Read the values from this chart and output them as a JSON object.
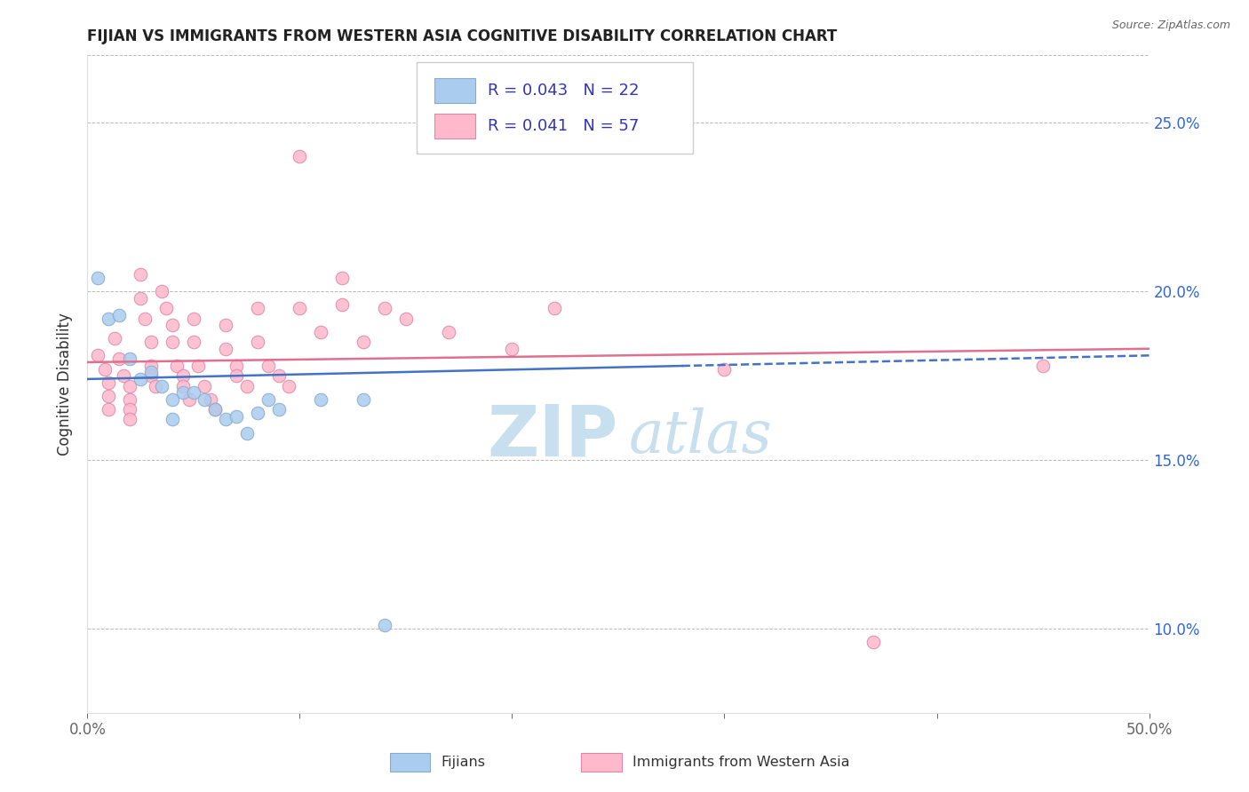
{
  "title": "FIJIAN VS IMMIGRANTS FROM WESTERN ASIA COGNITIVE DISABILITY CORRELATION CHART",
  "source": "Source: ZipAtlas.com",
  "ylabel": "Cognitive Disability",
  "ytick_labels": [
    "10.0%",
    "15.0%",
    "20.0%",
    "25.0%"
  ],
  "ytick_values": [
    0.1,
    0.15,
    0.2,
    0.25
  ],
  "xlim": [
    0.0,
    0.5
  ],
  "ylim": [
    0.075,
    0.27
  ],
  "fijian_R": "0.043",
  "fijian_N": "22",
  "western_asia_R": "0.041",
  "western_asia_N": "57",
  "fijian_color": "#aaccee",
  "fijian_edge_color": "#88aacc",
  "western_asia_color": "#ffb8cc",
  "western_asia_edge_color": "#dd88aa",
  "fijian_line_color": "#4472c4",
  "western_asia_line_color": "#e07090",
  "legend_text_color": "#3333bb",
  "title_color": "#222222",
  "watermark_main": "ZIP",
  "watermark_sub": "atlas",
  "watermark_color_main": "#c8dff0",
  "watermark_color_sub": "#c8dff0",
  "background_color": "#ffffff",
  "fijian_line_x": [
    0.0,
    0.5
  ],
  "fijian_line_y": [
    0.174,
    0.181
  ],
  "western_asia_line_x": [
    0.0,
    0.5
  ],
  "western_asia_line_y": [
    0.179,
    0.183
  ],
  "fijian_scatter": [
    [
      0.005,
      0.204
    ],
    [
      0.01,
      0.192
    ],
    [
      0.015,
      0.193
    ],
    [
      0.02,
      0.18
    ],
    [
      0.025,
      0.174
    ],
    [
      0.03,
      0.176
    ],
    [
      0.035,
      0.172
    ],
    [
      0.04,
      0.168
    ],
    [
      0.04,
      0.162
    ],
    [
      0.045,
      0.17
    ],
    [
      0.05,
      0.17
    ],
    [
      0.055,
      0.168
    ],
    [
      0.06,
      0.165
    ],
    [
      0.065,
      0.162
    ],
    [
      0.07,
      0.163
    ],
    [
      0.075,
      0.158
    ],
    [
      0.08,
      0.164
    ],
    [
      0.085,
      0.168
    ],
    [
      0.09,
      0.165
    ],
    [
      0.11,
      0.168
    ],
    [
      0.13,
      0.168
    ],
    [
      0.14,
      0.101
    ]
  ],
  "western_asia_scatter": [
    [
      0.005,
      0.181
    ],
    [
      0.008,
      0.177
    ],
    [
      0.01,
      0.173
    ],
    [
      0.01,
      0.169
    ],
    [
      0.01,
      0.165
    ],
    [
      0.013,
      0.186
    ],
    [
      0.015,
      0.18
    ],
    [
      0.017,
      0.175
    ],
    [
      0.02,
      0.172
    ],
    [
      0.02,
      0.168
    ],
    [
      0.02,
      0.165
    ],
    [
      0.02,
      0.162
    ],
    [
      0.025,
      0.205
    ],
    [
      0.025,
      0.198
    ],
    [
      0.027,
      0.192
    ],
    [
      0.03,
      0.185
    ],
    [
      0.03,
      0.178
    ],
    [
      0.03,
      0.175
    ],
    [
      0.032,
      0.172
    ],
    [
      0.035,
      0.2
    ],
    [
      0.037,
      0.195
    ],
    [
      0.04,
      0.19
    ],
    [
      0.04,
      0.185
    ],
    [
      0.042,
      0.178
    ],
    [
      0.045,
      0.175
    ],
    [
      0.045,
      0.172
    ],
    [
      0.048,
      0.168
    ],
    [
      0.05,
      0.192
    ],
    [
      0.05,
      0.185
    ],
    [
      0.052,
      0.178
    ],
    [
      0.055,
      0.172
    ],
    [
      0.058,
      0.168
    ],
    [
      0.06,
      0.165
    ],
    [
      0.065,
      0.19
    ],
    [
      0.065,
      0.183
    ],
    [
      0.07,
      0.178
    ],
    [
      0.07,
      0.175
    ],
    [
      0.075,
      0.172
    ],
    [
      0.08,
      0.195
    ],
    [
      0.08,
      0.185
    ],
    [
      0.085,
      0.178
    ],
    [
      0.09,
      0.175
    ],
    [
      0.095,
      0.172
    ],
    [
      0.1,
      0.24
    ],
    [
      0.1,
      0.195
    ],
    [
      0.11,
      0.188
    ],
    [
      0.12,
      0.204
    ],
    [
      0.12,
      0.196
    ],
    [
      0.13,
      0.185
    ],
    [
      0.14,
      0.195
    ],
    [
      0.15,
      0.192
    ],
    [
      0.17,
      0.188
    ],
    [
      0.2,
      0.183
    ],
    [
      0.22,
      0.195
    ],
    [
      0.3,
      0.177
    ],
    [
      0.37,
      0.096
    ],
    [
      0.45,
      0.178
    ]
  ]
}
